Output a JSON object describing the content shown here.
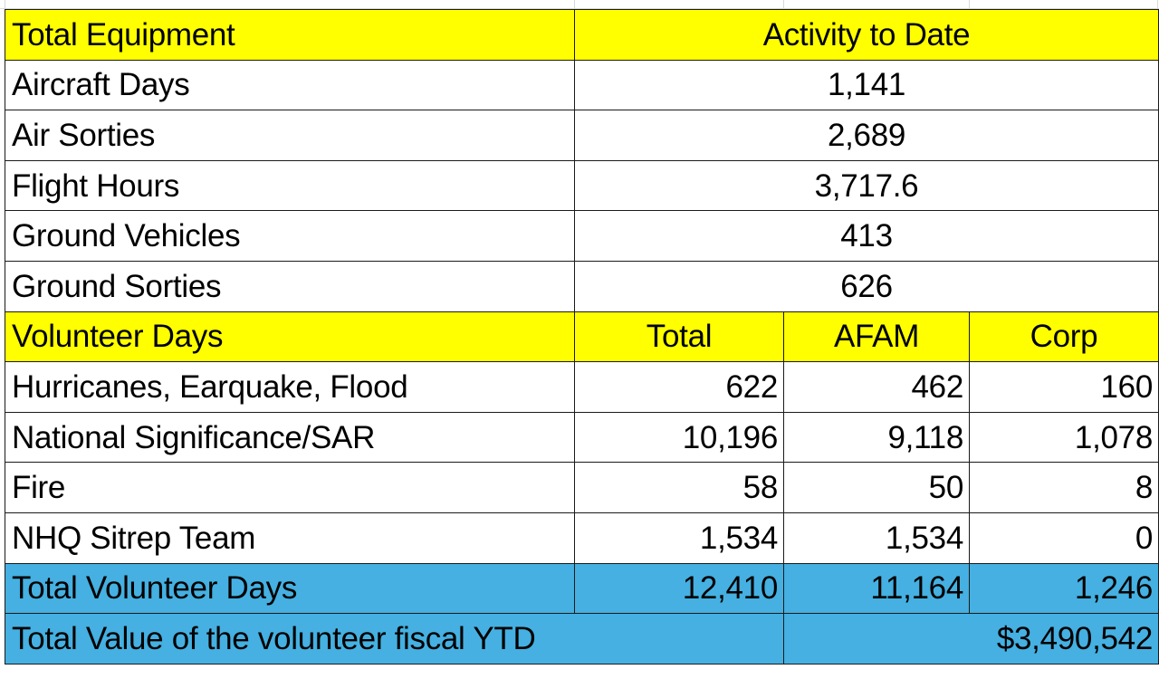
{
  "equipment": {
    "header": {
      "label": "Total Equipment",
      "activity": "Activity to Date"
    },
    "rows": [
      {
        "label": "Aircraft Days",
        "value": "1,141"
      },
      {
        "label": "Air Sorties",
        "value": "2,689"
      },
      {
        "label": "Flight Hours",
        "value": "3,717.6"
      },
      {
        "label": "Ground Vehicles",
        "value": "413"
      },
      {
        "label": "Ground Sorties",
        "value": "626"
      }
    ]
  },
  "volunteer": {
    "header": {
      "label": "Volunteer Days",
      "total": "Total",
      "afam": "AFAM",
      "corp": "Corp"
    },
    "rows": [
      {
        "label": "Hurricanes, Earquake, Flood",
        "total": "622",
        "afam": "462",
        "corp": "160"
      },
      {
        "label": "National Significance/SAR",
        "total": "10,196",
        "afam": "9,118",
        "corp": "1,078"
      },
      {
        "label": "Fire",
        "total": "58",
        "afam": "50",
        "corp": "8"
      },
      {
        "label": "NHQ Sitrep Team",
        "total": "1,534",
        "afam": "1,534",
        "corp": "0"
      }
    ],
    "totals": {
      "label": "Total Volunteer Days",
      "total": "12,410",
      "afam": "11,164",
      "corp": "1,246"
    },
    "value": {
      "label": "Total Value of the volunteer fiscal YTD",
      "amount": "$3,490,542"
    }
  },
  "colors": {
    "header_fill": "#ffff00",
    "totals_fill": "#45b0e1",
    "border": "#1a1a1a"
  }
}
